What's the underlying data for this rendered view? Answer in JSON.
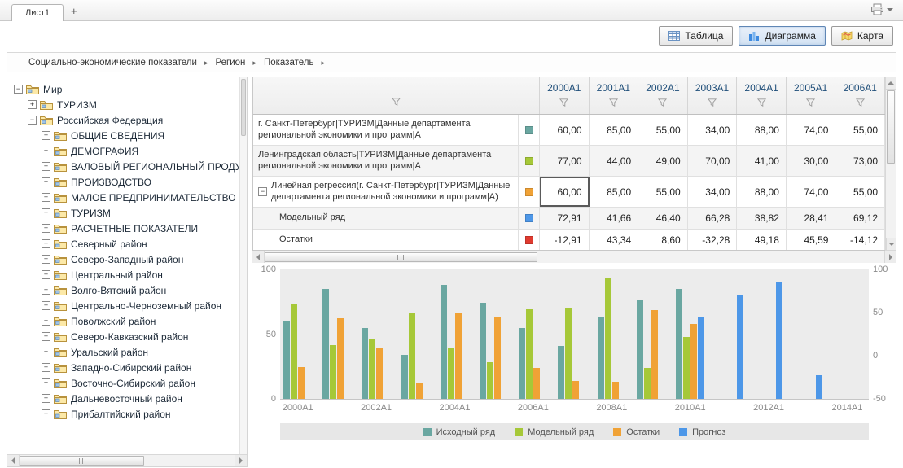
{
  "tabbar": {
    "tabs": [
      {
        "label": "Лист1",
        "active": true
      }
    ],
    "add_button": "+",
    "printer_icon": "printer-icon",
    "printer_caret_icon": "dropdown-caret-icon"
  },
  "toolbar": {
    "buttons": [
      {
        "id": "table",
        "label": "Таблица",
        "icon": "table-icon",
        "active": false
      },
      {
        "id": "chart",
        "label": "Диаграмма",
        "icon": "bar-chart-icon",
        "active": true
      },
      {
        "id": "map",
        "label": "Карта",
        "icon": "map-icon",
        "active": false
      }
    ]
  },
  "breadcrumb": {
    "items": [
      "Социально-экономические показатели",
      "Регион",
      "Показатель"
    ],
    "separator_icon": "right-arrow-icon"
  },
  "tree": {
    "folder_icon": "folder-icon",
    "items": [
      {
        "label": "Мир",
        "level": 0,
        "expanded": true
      },
      {
        "label": "ТУРИЗМ",
        "level": 1,
        "expanded": false
      },
      {
        "label": "Российская Федерация",
        "level": 1,
        "expanded": true
      },
      {
        "label": "ОБЩИЕ СВЕДЕНИЯ",
        "level": 2,
        "expanded": false
      },
      {
        "label": "ДЕМОГРАФИЯ",
        "level": 2,
        "expanded": false
      },
      {
        "label": "ВАЛОВЫЙ РЕГИОНАЛЬНЫЙ ПРОДУКТ",
        "level": 2,
        "expanded": false
      },
      {
        "label": "ПРОИЗВОДСТВО",
        "level": 2,
        "expanded": false
      },
      {
        "label": "МАЛОЕ ПРЕДПРИНИМАТЕЛЬСТВО",
        "level": 2,
        "expanded": false
      },
      {
        "label": "ТУРИЗМ",
        "level": 2,
        "expanded": false
      },
      {
        "label": "РАСЧЕТНЫЕ ПОКАЗАТЕЛИ",
        "level": 2,
        "expanded": false
      },
      {
        "label": "Северный район",
        "level": 2,
        "expanded": false
      },
      {
        "label": "Северо-Западный район",
        "level": 2,
        "expanded": false
      },
      {
        "label": "Центральный район",
        "level": 2,
        "expanded": false
      },
      {
        "label": "Волго-Вятский район",
        "level": 2,
        "expanded": false
      },
      {
        "label": "Центрально-Черноземный район",
        "level": 2,
        "expanded": false
      },
      {
        "label": "Поволжский район",
        "level": 2,
        "expanded": false
      },
      {
        "label": "Северо-Кавказский район",
        "level": 2,
        "expanded": false
      },
      {
        "label": "Уральский район",
        "level": 2,
        "expanded": false
      },
      {
        "label": "Западно-Сибирский район",
        "level": 2,
        "expanded": false
      },
      {
        "label": "Восточно-Сибирский район",
        "level": 2,
        "expanded": false
      },
      {
        "label": "Дальневосточный район",
        "level": 2,
        "expanded": false
      },
      {
        "label": "Прибалтийский район",
        "level": 2,
        "expanded": false
      }
    ]
  },
  "table": {
    "header_filter_icon": "funnel-icon",
    "columns": [
      "2000A1",
      "2001A1",
      "2002A1",
      "2003A1",
      "2004A1",
      "2005A1",
      "2006A1"
    ],
    "rows": [
      {
        "label": "г. Санкт-Петербург|ТУРИЗМ|Данные департамента региональной экономики и программ|А",
        "swatch": "#6aa7a1",
        "level": 0,
        "values": [
          "60,00",
          "85,00",
          "55,00",
          "34,00",
          "88,00",
          "74,00",
          "55,00"
        ]
      },
      {
        "label": "Ленинградская область|ТУРИЗМ|Данные департамента региональной экономики и программ|А",
        "swatch": "#a6c838",
        "level": 0,
        "values": [
          "77,00",
          "44,00",
          "49,00",
          "70,00",
          "41,00",
          "30,00",
          "73,00"
        ]
      },
      {
        "label": "Линейная регрессия(г. Санкт-Петербург|ТУРИЗМ|Данные департамента региональной экономики и программ|А)",
        "swatch": "#f0a236",
        "level": 0,
        "collapsible": true,
        "selected_cell": 0,
        "values": [
          "60,00",
          "85,00",
          "55,00",
          "34,00",
          "88,00",
          "74,00",
          "55,00"
        ]
      },
      {
        "label": "Модельный ряд",
        "swatch": "#4d97e8",
        "level": 1,
        "values": [
          "72,91",
          "41,66",
          "46,40",
          "66,28",
          "38,82",
          "28,41",
          "69,12"
        ]
      },
      {
        "label": "Остатки",
        "swatch": "#e03a2f",
        "level": 1,
        "values": [
          "-12,91",
          "43,34",
          "8,60",
          "-32,28",
          "49,18",
          "45,59",
          "-14,12"
        ]
      }
    ]
  },
  "chart_data": {
    "type": "bar",
    "x_years": [
      2000,
      2001,
      2002,
      2003,
      2004,
      2005,
      2006,
      2007,
      2008,
      2009,
      2010,
      2011,
      2012,
      2013,
      2014
    ],
    "x_tick_labels": [
      "2000A1",
      "2002A1",
      "2004A1",
      "2006A1",
      "2008A1",
      "2010A1",
      "2012A1",
      "2014A1"
    ],
    "left_axis": {
      "min": 0,
      "max": 100,
      "ticks": [
        100,
        50,
        0
      ]
    },
    "right_axis": {
      "min": -50,
      "max": 100,
      "ticks": [
        100,
        50,
        0,
        -50
      ]
    },
    "legend_position": "bottom",
    "series": [
      {
        "id": "original",
        "name": "Исходный ряд",
        "color": "#6aa7a1",
        "axis": "left",
        "start_year": 2000,
        "values": [
          60,
          85,
          55,
          34,
          88,
          74,
          55,
          41,
          63,
          77,
          85
        ]
      },
      {
        "id": "model",
        "name": "Модельный ряд",
        "color": "#a6c838",
        "axis": "left",
        "start_year": 2000,
        "values": [
          72.91,
          41.66,
          46.4,
          66.28,
          38.82,
          28.41,
          69.12,
          70,
          93,
          24,
          48
        ]
      },
      {
        "id": "residuals",
        "name": "Остатки",
        "color": "#f0a236",
        "axis": "right",
        "start_year": 2000,
        "values": [
          -12.91,
          43.34,
          8.6,
          -32.28,
          49.18,
          45.59,
          -14.12,
          -29,
          -30,
          53,
          37
        ]
      },
      {
        "id": "forecast",
        "name": "Прогноз",
        "color": "#4d97e8",
        "axis": "left",
        "start_year": 2010,
        "values": [
          63,
          80,
          90,
          18
        ]
      }
    ]
  }
}
